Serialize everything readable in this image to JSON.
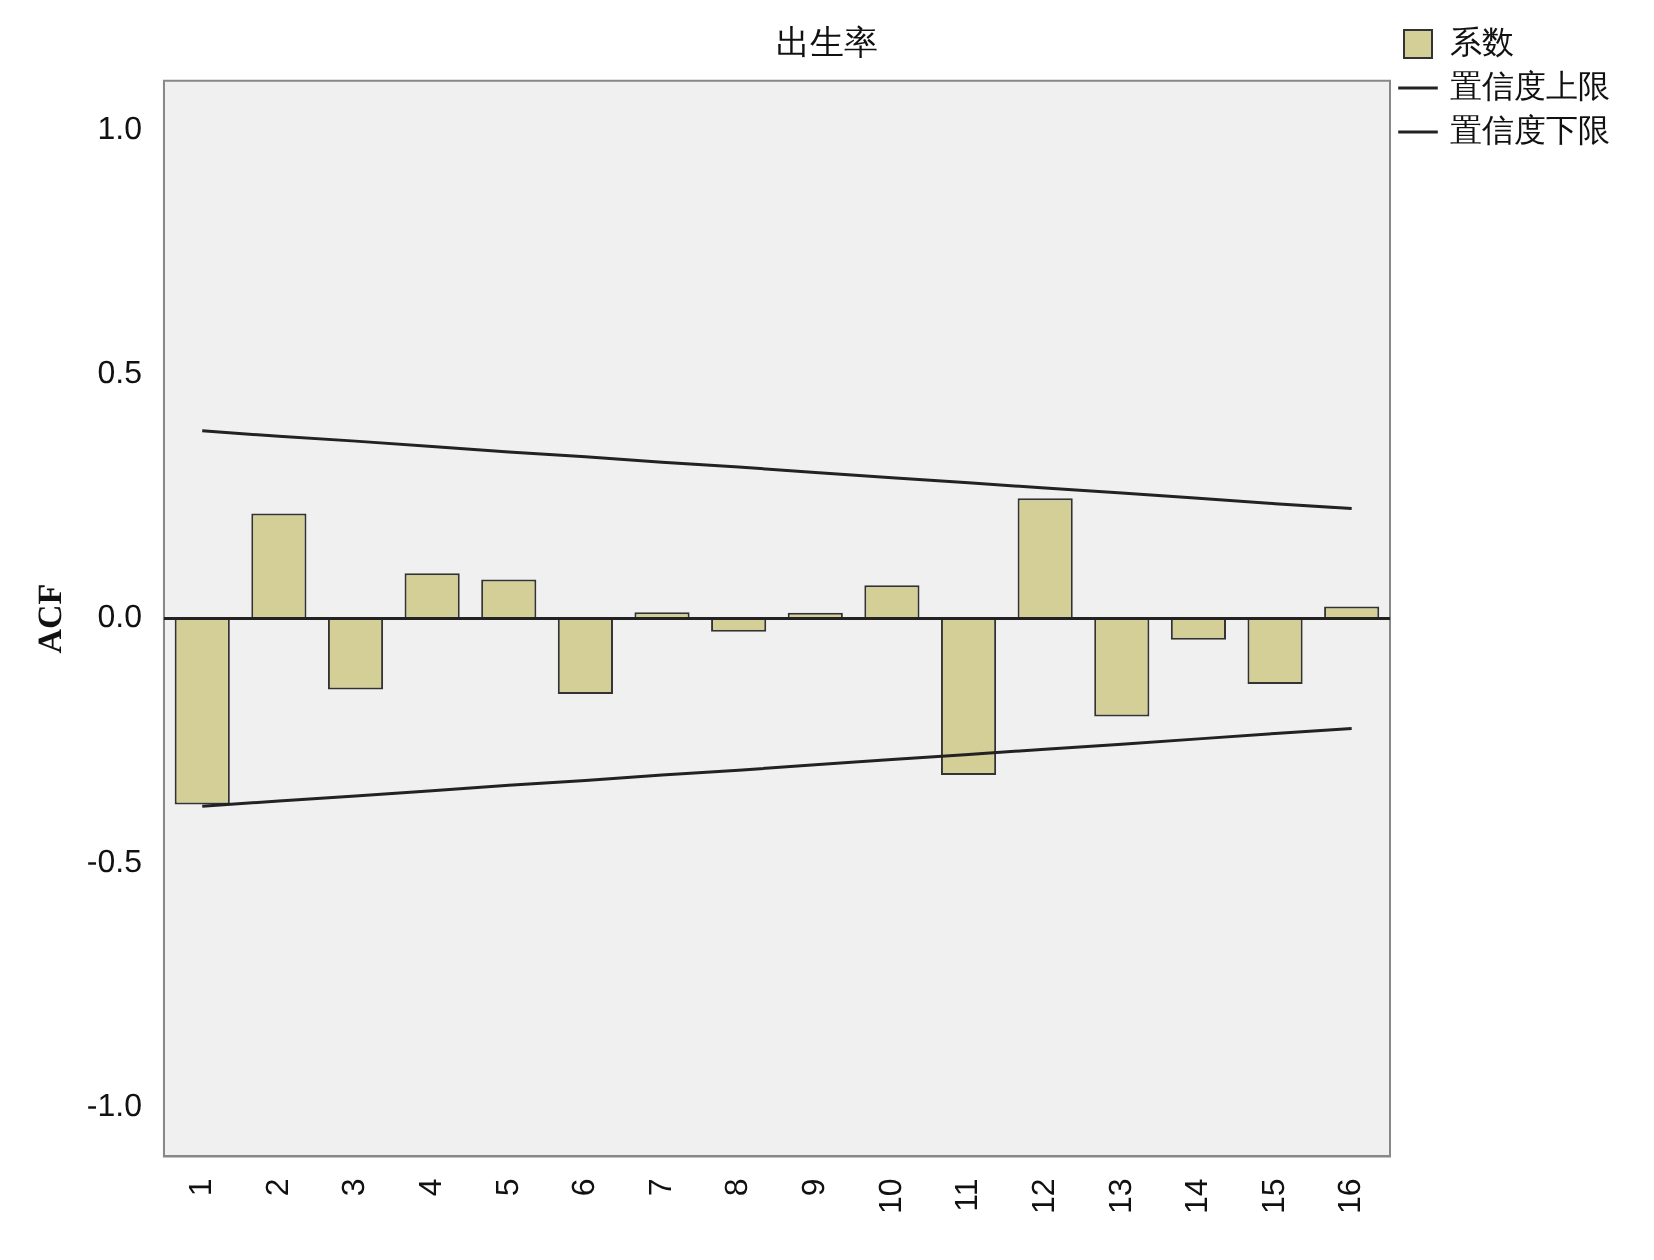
{
  "chart_data": {
    "type": "bar",
    "title": "出生率",
    "ylabel": "ACF",
    "categories": [
      "1",
      "2",
      "3",
      "4",
      "5",
      "6",
      "7",
      "8",
      "9",
      "10",
      "11",
      "12",
      "13",
      "14",
      "15",
      "16"
    ],
    "series": [
      {
        "name": "系数",
        "color": "#d4cf96",
        "values": [
          -0.38,
          0.215,
          -0.145,
          0.093,
          0.08,
          -0.154,
          0.013,
          -0.027,
          0.012,
          0.068,
          -0.32,
          0.246,
          -0.2,
          -0.043,
          -0.134,
          0.025
        ]
      },
      {
        "name": "置信度上限",
        "type": "line",
        "color": "#222222",
        "values": [
          0.384,
          0.373,
          0.363,
          0.352,
          0.341,
          0.331,
          0.32,
          0.31,
          0.299,
          0.288,
          0.278,
          0.267,
          0.257,
          0.246,
          0.235,
          0.225
        ]
      },
      {
        "name": "置信度下限",
        "type": "line",
        "color": "#222222",
        "values": [
          -0.384,
          -0.373,
          -0.363,
          -0.352,
          -0.341,
          -0.331,
          -0.32,
          -0.31,
          -0.299,
          -0.288,
          -0.278,
          -0.267,
          -0.257,
          -0.246,
          -0.235,
          -0.225
        ]
      }
    ],
    "ylim": [
      -1.1,
      1.1
    ],
    "yticks": [
      {
        "value": -1,
        "label": "-1.0"
      },
      {
        "value": -0.5,
        "label": "-0.5"
      },
      {
        "value": 0,
        "label": "0.0"
      },
      {
        "value": 0.5,
        "label": "0.5"
      },
      {
        "value": 1,
        "label": "1.0"
      }
    ],
    "ref_lines": [
      {
        "axis": "y",
        "value": 0
      }
    ],
    "grid": false,
    "legend": "top right",
    "marker": "none",
    "line_style": "solid"
  }
}
